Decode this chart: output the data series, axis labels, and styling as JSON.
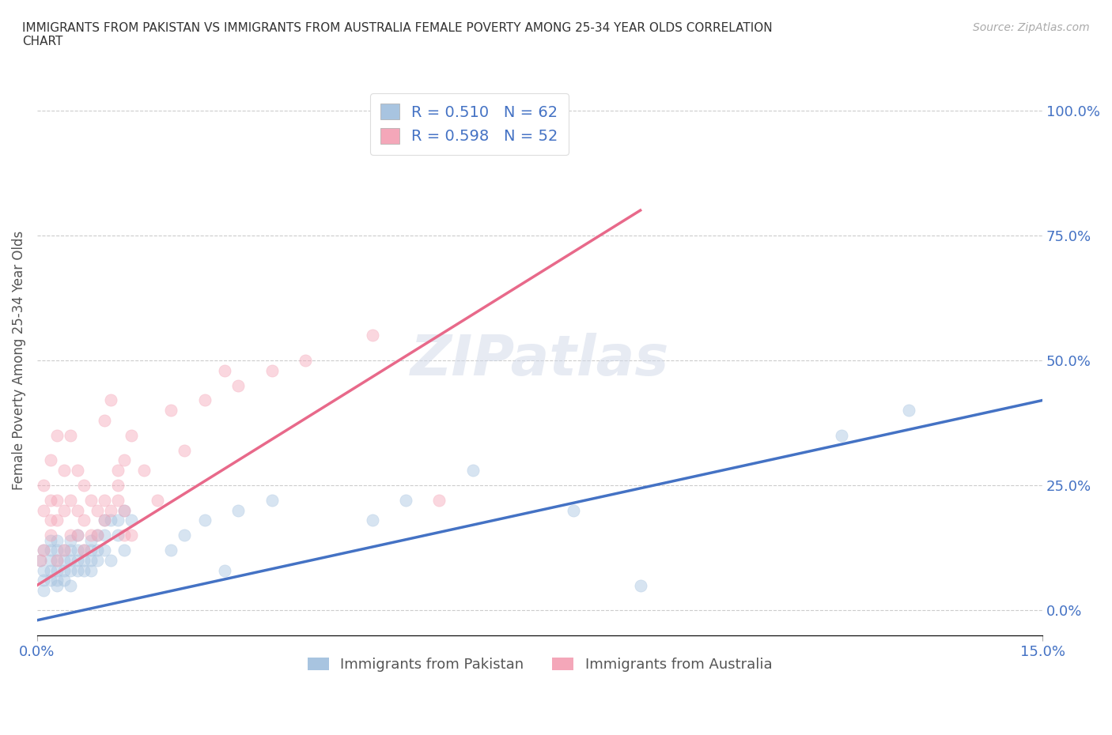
{
  "title": "IMMIGRANTS FROM PAKISTAN VS IMMIGRANTS FROM AUSTRALIA FEMALE POVERTY AMONG 25-34 YEAR OLDS CORRELATION\nCHART",
  "source": "Source: ZipAtlas.com",
  "ylabel": "Female Poverty Among 25-34 Year Olds",
  "xlim": [
    0.0,
    0.15
  ],
  "ylim": [
    -0.05,
    1.05
  ],
  "xticks": [
    0.0,
    0.15
  ],
  "xticklabels": [
    "0.0%",
    "15.0%"
  ],
  "yticks_right": [
    0.0,
    0.25,
    0.5,
    0.75,
    1.0
  ],
  "yticklabels_right": [
    "0.0%",
    "25.0%",
    "50.0%",
    "75.0%",
    "100.0%"
  ],
  "grid_color": "#cccccc",
  "background_color": "#ffffff",
  "watermark": "ZIPatlas",
  "pakistan_color": "#a8c4e0",
  "australia_color": "#f4a7b9",
  "pakistan_line_color": "#4472c4",
  "australia_line_color": "#e8698a",
  "pakistan_R": 0.51,
  "pakistan_N": 62,
  "australia_R": 0.598,
  "australia_N": 52,
  "pakistan_x": [
    0.0005,
    0.001,
    0.001,
    0.001,
    0.001,
    0.002,
    0.002,
    0.002,
    0.002,
    0.002,
    0.003,
    0.003,
    0.003,
    0.003,
    0.003,
    0.003,
    0.004,
    0.004,
    0.004,
    0.004,
    0.005,
    0.005,
    0.005,
    0.005,
    0.005,
    0.006,
    0.006,
    0.006,
    0.006,
    0.007,
    0.007,
    0.007,
    0.008,
    0.008,
    0.008,
    0.008,
    0.009,
    0.009,
    0.009,
    0.01,
    0.01,
    0.01,
    0.011,
    0.011,
    0.012,
    0.012,
    0.013,
    0.013,
    0.014,
    0.02,
    0.022,
    0.025,
    0.028,
    0.03,
    0.035,
    0.05,
    0.055,
    0.065,
    0.08,
    0.09,
    0.12,
    0.13
  ],
  "pakistan_y": [
    0.1,
    0.12,
    0.08,
    0.06,
    0.04,
    0.1,
    0.08,
    0.06,
    0.12,
    0.14,
    0.05,
    0.08,
    0.1,
    0.12,
    0.14,
    0.06,
    0.08,
    0.1,
    0.06,
    0.12,
    0.08,
    0.1,
    0.12,
    0.05,
    0.14,
    0.1,
    0.12,
    0.08,
    0.15,
    0.08,
    0.1,
    0.12,
    0.1,
    0.12,
    0.08,
    0.14,
    0.1,
    0.12,
    0.15,
    0.12,
    0.15,
    0.18,
    0.1,
    0.18,
    0.15,
    0.18,
    0.12,
    0.2,
    0.18,
    0.12,
    0.15,
    0.18,
    0.08,
    0.2,
    0.22,
    0.18,
    0.22,
    0.28,
    0.2,
    0.05,
    0.35,
    0.4
  ],
  "australia_x": [
    0.0005,
    0.001,
    0.001,
    0.001,
    0.002,
    0.002,
    0.002,
    0.002,
    0.003,
    0.003,
    0.003,
    0.003,
    0.004,
    0.004,
    0.004,
    0.005,
    0.005,
    0.005,
    0.006,
    0.006,
    0.006,
    0.007,
    0.007,
    0.007,
    0.008,
    0.008,
    0.009,
    0.009,
    0.01,
    0.01,
    0.01,
    0.011,
    0.011,
    0.012,
    0.012,
    0.012,
    0.013,
    0.013,
    0.013,
    0.014,
    0.014,
    0.016,
    0.018,
    0.02,
    0.022,
    0.025,
    0.028,
    0.03,
    0.035,
    0.04,
    0.05,
    0.06
  ],
  "australia_y": [
    0.1,
    0.12,
    0.2,
    0.25,
    0.15,
    0.18,
    0.22,
    0.3,
    0.1,
    0.18,
    0.22,
    0.35,
    0.12,
    0.2,
    0.28,
    0.15,
    0.22,
    0.35,
    0.15,
    0.2,
    0.28,
    0.12,
    0.18,
    0.25,
    0.15,
    0.22,
    0.15,
    0.2,
    0.18,
    0.22,
    0.38,
    0.2,
    0.42,
    0.22,
    0.25,
    0.28,
    0.15,
    0.2,
    0.3,
    0.15,
    0.35,
    0.28,
    0.22,
    0.4,
    0.32,
    0.42,
    0.48,
    0.45,
    0.48,
    0.5,
    0.55,
    0.22
  ],
  "pk_trend_x0": 0.0,
  "pk_trend_y0": -0.02,
  "pk_trend_x1": 0.15,
  "pk_trend_y1": 0.42,
  "au_trend_x0": 0.0,
  "au_trend_y0": 0.05,
  "au_trend_x1": 0.09,
  "au_trend_y1": 0.8,
  "pakistan_scatter_size": 120,
  "australia_scatter_size": 120,
  "pakistan_alpha": 0.45,
  "australia_alpha": 0.45
}
